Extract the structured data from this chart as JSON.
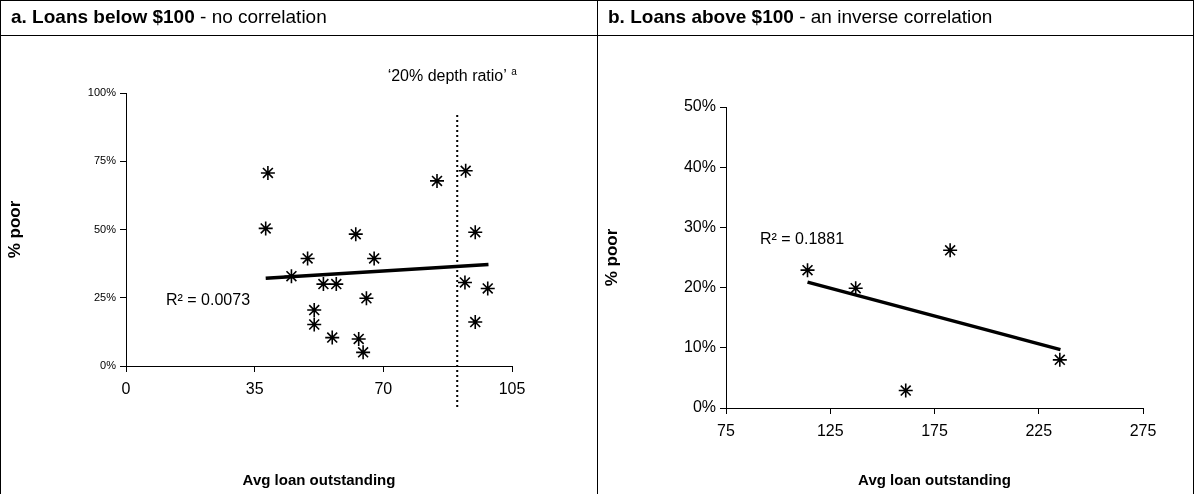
{
  "chart_data": [
    {
      "type": "scatter",
      "title": "a. Loans below $100",
      "subtitle": "- no correlation",
      "xlabel": "Avg loan outstanding",
      "ylabel": "% poor",
      "series": [
        {
          "color": "#000000",
          "x": [
            38.6,
            38.0,
            45.0,
            49.4,
            51.2,
            51.2,
            53.7,
            57.2,
            56.1,
            62.5,
            63.3,
            64.5,
            65.4,
            67.5,
            84.6,
            92.4,
            95.0,
            92.2,
            98.4,
            95.0
          ],
          "values": [
            70.7,
            50.4,
            32.9,
            39.4,
            20.5,
            15.2,
            30.0,
            30.0,
            10.4,
            48.3,
            9.9,
            5.0,
            24.8,
            39.4,
            67.8,
            71.5,
            49.0,
            30.6,
            28.4,
            16.1
          ]
        },
        {
          "type": "line",
          "color": "#000000",
          "marker": "none",
          "x": [
            38.0,
            98.6
          ],
          "values": [
            32.1,
            37.2
          ]
        }
      ],
      "xlim": [
        0,
        105
      ],
      "xticks": [
        0,
        35,
        70,
        105
      ],
      "ylim": [
        0,
        100
      ],
      "yticks": [
        {
          "value": 0,
          "label": "0%"
        },
        {
          "value": 25,
          "label": "25%"
        },
        {
          "value": 50,
          "label": "50%"
        },
        {
          "value": 75,
          "label": "75%"
        },
        {
          "value": 100,
          "label": "100%"
        }
      ],
      "marker": "cross",
      "grid": false,
      "legend": false,
      "ref_lines": [
        {
          "axis": "x",
          "value": 90.1,
          "label": "‘20% depth ratio’ $^{a}$",
          "line_style": "dotted",
          "color": "#000000"
        }
      ],
      "annotations": [
        "R² = 0.0073"
      ]
    },
    {
      "type": "scatter",
      "title": "b. Loans above $100",
      "subtitle": " - an inverse correlation",
      "xlabel": "Avg loan outstanding",
      "ylabel": "% poor",
      "series": [
        {
          "color": "#000000",
          "x": [
            114.1,
            137.2,
            182.5,
            161.2,
            235.1
          ],
          "values": [
            22.9,
            19.9,
            26.2,
            2.9,
            8.0
          ]
        },
        {
          "type": "line",
          "color": "#000000",
          "marker": "none",
          "x": [
            114.1,
            235.4
          ],
          "values": [
            20.9,
            9.7
          ]
        }
      ],
      "xlim": [
        75,
        275
      ],
      "xticks": [
        75,
        125,
        175,
        225,
        275
      ],
      "ylim": [
        0,
        50
      ],
      "yticks": [
        {
          "value": 0,
          "label": "0%"
        },
        {
          "value": 10,
          "label": "10%"
        },
        {
          "value": 20,
          "label": "20%"
        },
        {
          "value": 30,
          "label": "30%"
        },
        {
          "value": 40,
          "label": "40%"
        },
        {
          "value": 50,
          "label": "50%"
        }
      ],
      "marker": "cross",
      "grid": false,
      "legend": false,
      "annotations": [
        "R² = 0.1881"
      ]
    }
  ]
}
